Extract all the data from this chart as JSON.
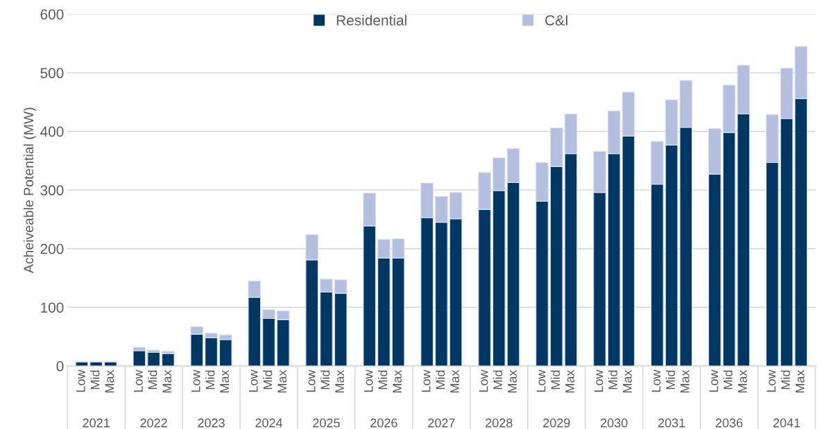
{
  "chart_data": {
    "type": "bar",
    "stacked": true,
    "ylabel": "Acheiveable Potential (MW)",
    "categories": [
      "Low",
      "Mid",
      "Max",
      null,
      "Low",
      "Mid",
      "Max",
      null,
      "Low",
      "Mid",
      "Max",
      null,
      "Low",
      "Mid",
      "Max",
      null,
      "Low",
      "Mid",
      "Max",
      null,
      "Low",
      "Mid",
      "Max",
      null,
      "Low",
      "Mid",
      "Max",
      null,
      "Low",
      "Mid",
      "Max",
      null,
      "Low",
      "Mid",
      "Max",
      null,
      "Low",
      "Mid",
      "Max",
      null,
      "Low",
      "Mid",
      "Max",
      null,
      "Low",
      "Mid",
      "Max",
      null,
      "Low",
      "Mid",
      "Max"
    ],
    "annotations": [
      "2021",
      "2022",
      "2023",
      "2024",
      "2025",
      "2026",
      "2027",
      "2028",
      "2029",
      "2030",
      "2031",
      "2036",
      "2041"
    ],
    "series": [
      {
        "name": "Residential",
        "color": "#003865",
        "values": [
          7,
          7,
          7,
          null,
          26,
          23,
          21,
          null,
          54,
          48,
          45,
          null,
          117,
          81,
          79,
          null,
          181,
          126,
          124,
          null,
          239,
          184,
          184,
          null,
          253,
          245,
          251,
          null,
          267,
          299,
          313,
          null,
          281,
          340,
          362,
          null,
          296,
          362,
          392,
          null,
          310,
          377,
          407,
          null,
          327,
          398,
          430,
          null,
          347,
          422,
          456
        ]
      },
      {
        "name": "C&I",
        "color": "#b4bfe0",
        "values": [
          1,
          1,
          1,
          null,
          6,
          4,
          4,
          null,
          13,
          8,
          8,
          null,
          28,
          15,
          15,
          null,
          43,
          22,
          23,
          null,
          56,
          32,
          33,
          null,
          59,
          44,
          45,
          null,
          63,
          56,
          58,
          null,
          66,
          66,
          68,
          null,
          70,
          73,
          75,
          null,
          73,
          77,
          80,
          null,
          78,
          81,
          83,
          null,
          82,
          86,
          89
        ]
      }
    ],
    "ylim": [
      0,
      600
    ],
    "yticks": [
      0,
      100,
      200,
      300,
      400,
      500,
      600
    ],
    "grid": "y",
    "legend": "top"
  }
}
